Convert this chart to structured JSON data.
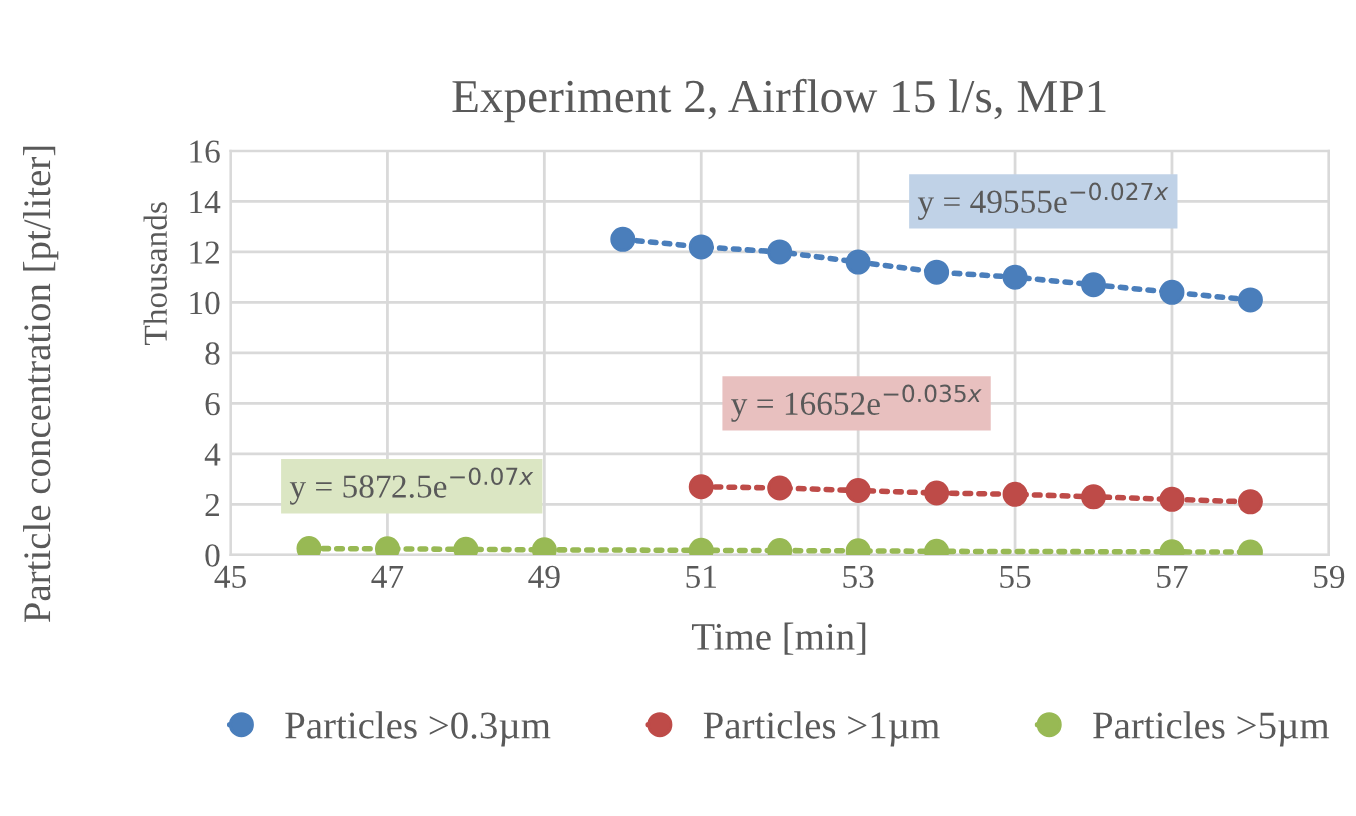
{
  "chart_data": {
    "type": "line",
    "title": "Experiment 2, Airflow 15 l/s, MP1",
    "xlabel": "Time [min]",
    "ylabel": "Particle concentration [pt/liter]",
    "xlim": [
      45,
      59
    ],
    "xticks": [
      45,
      47,
      49,
      51,
      53,
      55,
      57,
      59
    ],
    "ylim": [
      0,
      16
    ],
    "yticks": [
      0,
      2,
      4,
      6,
      8,
      10,
      12,
      14,
      16
    ],
    "grid": true,
    "legend": "bottom",
    "marker": "circle",
    "line_style": "dotted",
    "series": [
      {
        "name": "Particles >0.3µm",
        "color": "#4a7ebb",
        "x": [
          50,
          51,
          52,
          53,
          54,
          55,
          56,
          57,
          58
        ],
        "values": [
          12.5,
          12.2,
          12.0,
          11.6,
          11.2,
          11.0,
          10.7,
          10.4,
          10.1
        ]
      },
      {
        "name": "Particles >1µm",
        "color": "#be4b48",
        "x": [
          51,
          52,
          53,
          54,
          55,
          56,
          57,
          58
        ],
        "values": [
          2.7,
          2.65,
          2.55,
          2.45,
          2.4,
          2.3,
          2.2,
          2.1
        ]
      },
      {
        "name": "Particles >5µm",
        "color": "#98b954",
        "x": [
          46,
          47,
          48,
          49,
          51,
          52,
          53,
          54,
          57,
          58
        ],
        "values": [
          0.25,
          0.24,
          0.22,
          0.2,
          0.18,
          0.17,
          0.16,
          0.14,
          0.12,
          0.11
        ]
      }
    ],
    "annotations": [
      "Thousands",
      "y = 49555e$^{−0.027x}$",
      "y = 16652e$^{−0.035x}$",
      "y = 5872.5e$^{−0.07x}$"
    ]
  }
}
